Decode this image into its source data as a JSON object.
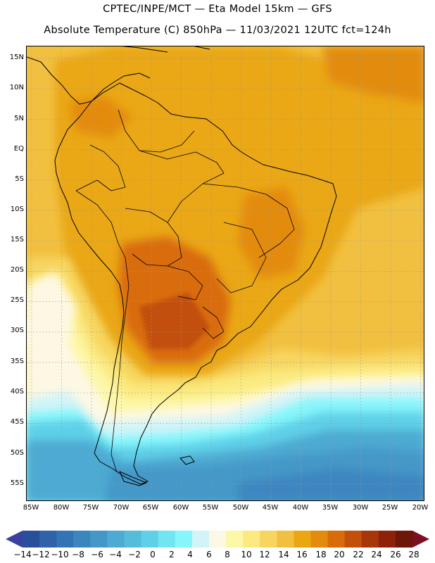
{
  "header": {
    "line1": "CPTEC/INPE/MCT —  Eta Model 15km — GFS",
    "line2": "Absolute Temperature (C) 850hPa — 11/03/2021 12UTC fct=124h"
  },
  "axes": {
    "lat_labels": [
      "15N",
      "10N",
      "5N",
      "EQ",
      "5S",
      "10S",
      "15S",
      "20S",
      "25S",
      "30S",
      "35S",
      "40S",
      "45S",
      "50S",
      "55S"
    ],
    "lon_labels": [
      "85W",
      "80W",
      "75W",
      "70W",
      "65W",
      "60W",
      "55W",
      "50W",
      "45W",
      "40W",
      "35W",
      "30W",
      "25W",
      "20W"
    ]
  },
  "colorbar": {
    "labels": [
      "-14",
      "-12",
      "-10",
      "-8",
      "-6",
      "-4",
      "-2",
      "0",
      "2",
      "4",
      "6",
      "8",
      "10",
      "12",
      "14",
      "16",
      "18",
      "20",
      "22",
      "24",
      "26",
      "28"
    ],
    "colors": [
      "#2a4f9a",
      "#2f62a8",
      "#3574b4",
      "#3c86c0",
      "#4498c8",
      "#4eaad2",
      "#55bcdc",
      "#5fd0e8",
      "#70e6f2",
      "#86f6fa",
      "#d2f4f8",
      "#fdf8e4",
      "#fdf7a8",
      "#fbea80",
      "#f7d660",
      "#f2c040",
      "#eaa712",
      "#e38b0c",
      "#d96c0a",
      "#c2500a",
      "#a8360a",
      "#8e2208",
      "#6e1608"
    ],
    "low_arrow_color": "#3a40a0",
    "high_arrow_color": "#7a1020"
  }
}
